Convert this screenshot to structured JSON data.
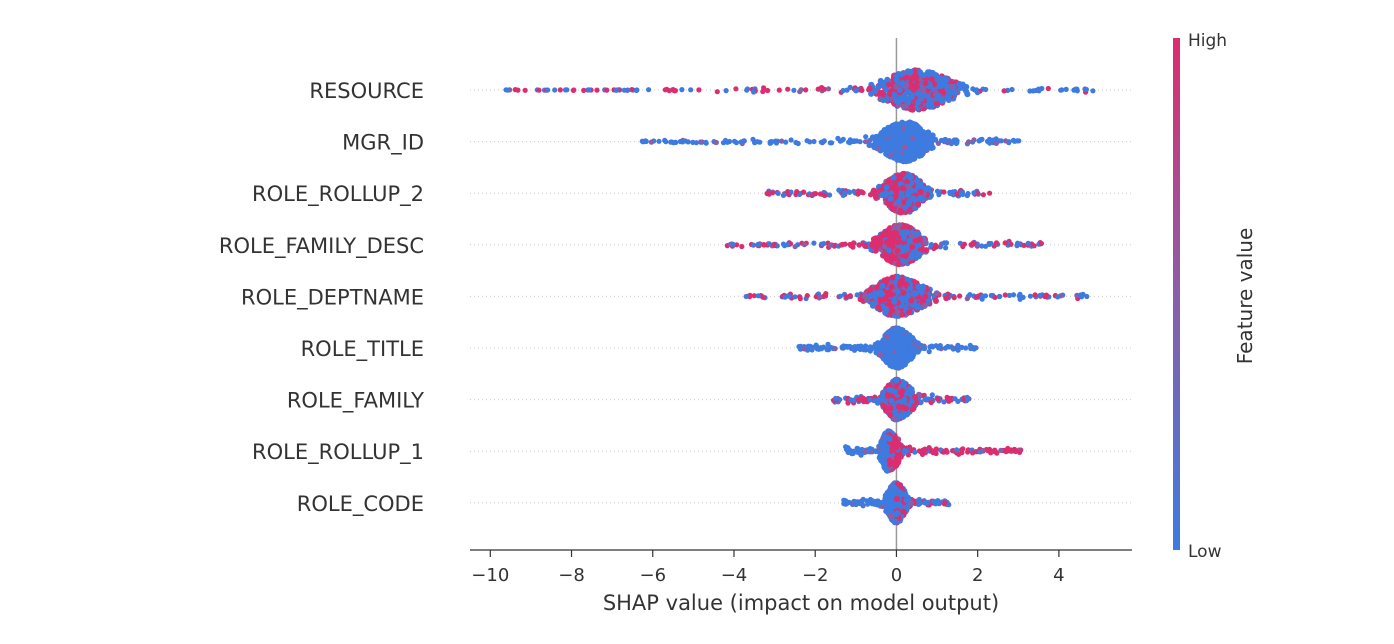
{
  "chart_data": {
    "type": "scatter",
    "subtype": "shap-beeswarm-summary",
    "xlabel": "SHAP value (impact on model output)",
    "xlim": [
      -10.5,
      5.8
    ],
    "xticks": [
      -10,
      -8,
      -6,
      -4,
      -2,
      0,
      2,
      4
    ],
    "xtick_labels": [
      "−10",
      "−8",
      "−6",
      "−4",
      "−2",
      "0",
      "2",
      "4"
    ],
    "grid": false,
    "zero_line": 0,
    "colorbar": {
      "title": "Feature value",
      "high_label": "High",
      "low_label": "Low",
      "high_color": "#ff0052",
      "low_color": "#008bfb",
      "placement": "right"
    },
    "features": [
      {
        "name": "RESOURCE",
        "min": -9.7,
        "max": 5.0,
        "center": 0.5,
        "core_lo": -1.0,
        "core_hi": 2.0,
        "peak": 0.45,
        "lo_mix": 0.45,
        "hi_mix": 0.2
      },
      {
        "name": "MGR_ID",
        "min": -6.3,
        "max": 3.1,
        "center": 0.2,
        "core_lo": -0.8,
        "core_hi": 1.2,
        "peak": 0.35,
        "lo_mix": 0.0,
        "hi_mix": 0.0
      },
      {
        "name": "ROLE_ROLLUP_2",
        "min": -3.2,
        "max": 2.3,
        "center": 0.2,
        "core_lo": -0.7,
        "core_hi": 1.0,
        "peak": 0.35,
        "lo_mix": 0.55,
        "hi_mix": 0.3
      },
      {
        "name": "ROLE_FAMILY_DESC",
        "min": -4.3,
        "max": 3.7,
        "center": 0.1,
        "core_lo": -0.8,
        "core_hi": 1.0,
        "peak": 0.35,
        "lo_mix": 0.75,
        "hi_mix": 0.4
      },
      {
        "name": "ROLE_DEPTNAME",
        "min": -3.7,
        "max": 4.8,
        "center": 0.0,
        "core_lo": -1.0,
        "core_hi": 1.2,
        "peak": 0.35,
        "lo_mix": 0.5,
        "hi_mix": 0.3
      },
      {
        "name": "ROLE_TITLE",
        "min": -2.4,
        "max": 2.0,
        "center": 0.0,
        "core_lo": -0.6,
        "core_hi": 0.7,
        "peak": 0.45,
        "lo_mix": 0.0,
        "hi_mix": 0.0
      },
      {
        "name": "ROLE_FAMILY",
        "min": -1.6,
        "max": 1.8,
        "center": 0.0,
        "core_lo": -0.5,
        "core_hi": 0.7,
        "peak": 0.35,
        "lo_mix": 0.45,
        "hi_mix": 0.35
      },
      {
        "name": "ROLE_ROLLUP_1",
        "min": -1.3,
        "max": 3.1,
        "center": -0.2,
        "core_lo": -0.5,
        "core_hi": 0.3,
        "peak": 0.35,
        "lo_mix": 0.0,
        "hi_mix": 0.85
      },
      {
        "name": "ROLE_CODE",
        "min": -1.3,
        "max": 1.3,
        "center": 0.0,
        "core_lo": -0.4,
        "core_hi": 0.4,
        "peak": 0.35,
        "lo_mix": 0.0,
        "hi_mix": 0.35
      }
    ]
  }
}
